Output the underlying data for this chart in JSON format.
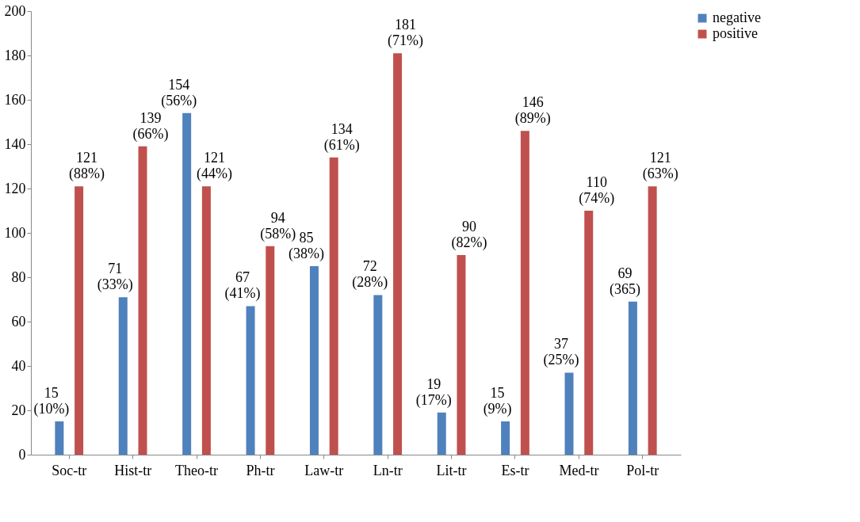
{
  "chart_data": {
    "type": "bar",
    "categories": [
      "Soc-tr",
      "Hist-tr",
      "Theo-tr",
      "Ph-tr",
      "Law-tr",
      "Ln-tr",
      "Lit-tr",
      "Es-tr",
      "Med-tr",
      "Pol-tr"
    ],
    "series": [
      {
        "name": "negative",
        "color": "#4f81bd",
        "values": [
          15,
          71,
          154,
          67,
          85,
          72,
          19,
          15,
          37,
          69
        ],
        "value_labels": [
          "15 (10%)",
          "71 (33%)",
          "154 (56%)",
          "67 (41%)",
          "85 (38%)",
          "72 (28%)",
          "19 (17%)",
          "15 (9%)",
          "37 (25%)",
          "69 (365)"
        ]
      },
      {
        "name": "positive",
        "color": "#c0504d",
        "values": [
          121,
          139,
          121,
          94,
          134,
          181,
          90,
          146,
          110,
          121
        ],
        "value_labels": [
          "121 (88%)",
          "139 (66%)",
          "121 (44%)",
          "94 (58%)",
          "134 (61%)",
          "181 (71%)",
          "90 (82%)",
          "146 (89%)",
          "110 (74%)",
          "121 (63%)"
        ]
      }
    ],
    "ylim": [
      0,
      200
    ],
    "yticks": [
      0,
      20,
      40,
      60,
      80,
      100,
      120,
      140,
      160,
      180,
      200
    ],
    "grid": false,
    "legend": "right"
  }
}
